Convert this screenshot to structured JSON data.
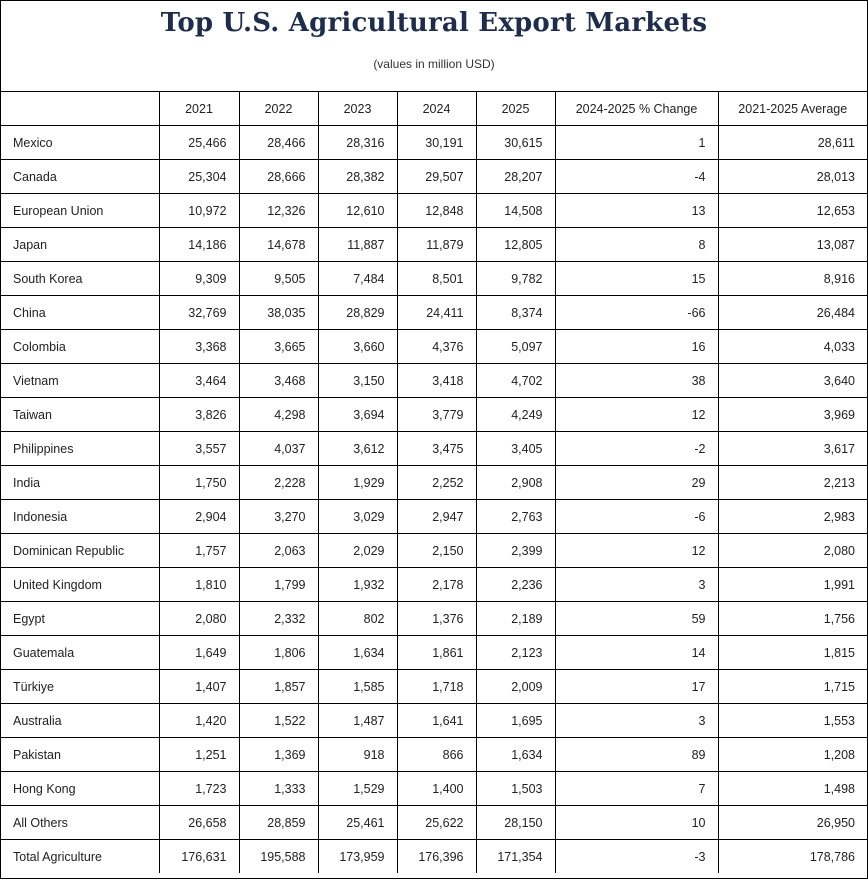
{
  "header": {
    "title": "Top U.S. Agricultural Export Markets",
    "subtitle": "(values in million USD)"
  },
  "chart_data": {
    "type": "table",
    "title": "Top U.S. Agricultural Export Markets",
    "subtitle": "(values in million USD)",
    "columns": [
      "",
      "2021",
      "2022",
      "2023",
      "2024",
      "2025",
      "2024-2025 % Change",
      "2021-2025 Average"
    ],
    "rows": [
      [
        "Mexico",
        "25,466",
        "28,466",
        "28,316",
        "30,191",
        "30,615",
        "1",
        "28,611"
      ],
      [
        "Canada",
        "25,304",
        "28,666",
        "28,382",
        "29,507",
        "28,207",
        "-4",
        "28,013"
      ],
      [
        "European Union",
        "10,972",
        "12,326",
        "12,610",
        "12,848",
        "14,508",
        "13",
        "12,653"
      ],
      [
        "Japan",
        "14,186",
        "14,678",
        "11,887",
        "11,879",
        "12,805",
        "8",
        "13,087"
      ],
      [
        "South Korea",
        "9,309",
        "9,505",
        "7,484",
        "8,501",
        "9,782",
        "15",
        "8,916"
      ],
      [
        "China",
        "32,769",
        "38,035",
        "28,829",
        "24,411",
        "8,374",
        "-66",
        "26,484"
      ],
      [
        "Colombia",
        "3,368",
        "3,665",
        "3,660",
        "4,376",
        "5,097",
        "16",
        "4,033"
      ],
      [
        "Vietnam",
        "3,464",
        "3,468",
        "3,150",
        "3,418",
        "4,702",
        "38",
        "3,640"
      ],
      [
        "Taiwan",
        "3,826",
        "4,298",
        "3,694",
        "3,779",
        "4,249",
        "12",
        "3,969"
      ],
      [
        "Philippines",
        "3,557",
        "4,037",
        "3,612",
        "3,475",
        "3,405",
        "-2",
        "3,617"
      ],
      [
        "India",
        "1,750",
        "2,228",
        "1,929",
        "2,252",
        "2,908",
        "29",
        "2,213"
      ],
      [
        "Indonesia",
        "2,904",
        "3,270",
        "3,029",
        "2,947",
        "2,763",
        "-6",
        "2,983"
      ],
      [
        "Dominican Republic",
        "1,757",
        "2,063",
        "2,029",
        "2,150",
        "2,399",
        "12",
        "2,080"
      ],
      [
        "United Kingdom",
        "1,810",
        "1,799",
        "1,932",
        "2,178",
        "2,236",
        "3",
        "1,991"
      ],
      [
        "Egypt",
        "2,080",
        "2,332",
        "802",
        "1,376",
        "2,189",
        "59",
        "1,756"
      ],
      [
        "Guatemala",
        "1,649",
        "1,806",
        "1,634",
        "1,861",
        "2,123",
        "14",
        "1,815"
      ],
      [
        "Türkiye",
        "1,407",
        "1,857",
        "1,585",
        "1,718",
        "2,009",
        "17",
        "1,715"
      ],
      [
        "Australia",
        "1,420",
        "1,522",
        "1,487",
        "1,641",
        "1,695",
        "3",
        "1,553"
      ],
      [
        "Pakistan",
        "1,251",
        "1,369",
        "918",
        "866",
        "1,634",
        "89",
        "1,208"
      ],
      [
        "Hong Kong",
        "1,723",
        "1,333",
        "1,529",
        "1,400",
        "1,503",
        "7",
        "1,498"
      ],
      [
        "All Others",
        "26,658",
        "28,859",
        "25,461",
        "25,622",
        "28,150",
        "10",
        "26,950"
      ],
      [
        "Total Agriculture",
        "176,631",
        "195,588",
        "173,959",
        "176,396",
        "171,354",
        "-3",
        "178,786"
      ]
    ]
  },
  "colors": {
    "title": "#1f2d4d",
    "border": "#000000",
    "text": "#222222"
  }
}
